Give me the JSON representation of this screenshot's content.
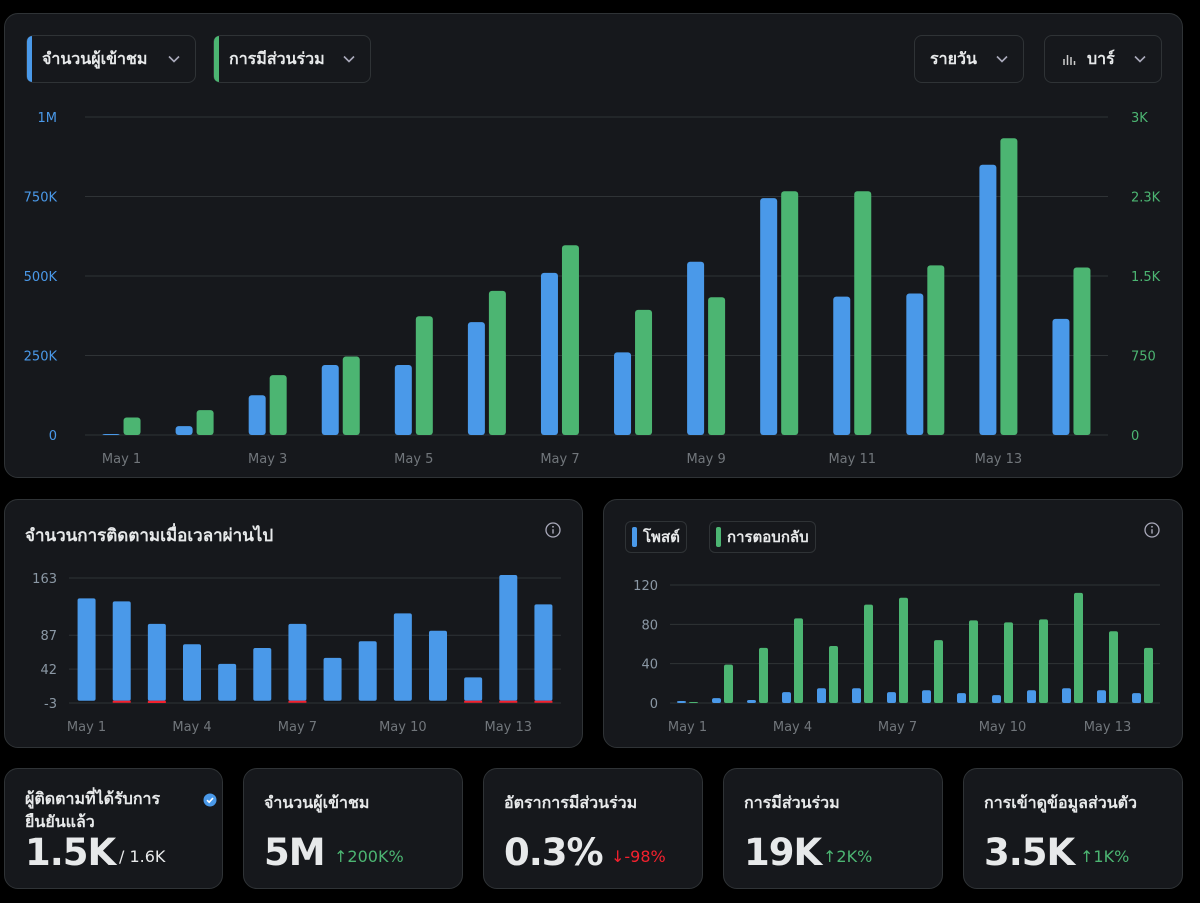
{
  "main_chart": {
    "selectors": {
      "metric_1": "จำนวนผู้เข้าชม",
      "metric_2": "การมีส่วนร่วม",
      "period": "รายวัน",
      "chart_type": "บาร์"
    },
    "colors": {
      "series_1": "#4a99e9",
      "series_2": "#4cb572"
    }
  },
  "followers_card": {
    "title": "จำนวนการติดตามเมื่อเวลาผ่านไป"
  },
  "replies_card": {
    "legend_1": "โพสต์",
    "legend_2": "การตอบกลับ"
  },
  "stats": [
    {
      "label": "ผู้ติดตามที่ได้รับการยืนยันแล้ว",
      "value": "1.5K",
      "sub": "/ 1.6K",
      "verified_icon": "verified-badge-icon"
    },
    {
      "label": "จำนวนผู้เข้าชม",
      "value": "5M",
      "delta": "↑200K%",
      "delta_color": "#4cb572"
    },
    {
      "label": "อัตราการมีส่วนร่วม",
      "value": "0.3%",
      "delta": "↓-98%",
      "delta_color": "#f4212e"
    },
    {
      "label": "การมีส่วนร่วม",
      "value": "19K",
      "delta": "↑2K%",
      "delta_color": "#4cb572"
    },
    {
      "label": "การเข้าดูข้อมูลส่วนตัว",
      "value": "3.5K",
      "delta": "↑1K%",
      "delta_color": "#4cb572"
    }
  ],
  "chart_data": [
    {
      "type": "bar",
      "categories": [
        "May 1",
        "May 2",
        "May 3",
        "May 4",
        "May 5",
        "May 6",
        "May 7",
        "May 8",
        "May 9",
        "May 10",
        "May 11",
        "May 12",
        "May 13",
        "May 14"
      ],
      "x_tick_labels": [
        "May 1",
        "May 3",
        "May 5",
        "May 7",
        "May 9",
        "May 11",
        "May 13"
      ],
      "series": [
        {
          "name": "จำนวนผู้เข้าชม",
          "axis": "left",
          "values": [
            2000,
            28000,
            125000,
            220000,
            220000,
            355000,
            510000,
            260000,
            545000,
            745000,
            435000,
            445000,
            850000,
            365000
          ]
        },
        {
          "name": "การมีส่วนร่วม",
          "axis": "right",
          "values": [
            165,
            235,
            565,
            740,
            1120,
            1360,
            1790,
            1180,
            1300,
            2300,
            2300,
            1600,
            2800,
            1580
          ]
        }
      ],
      "y_left": {
        "ticks": [
          "0",
          "250K",
          "500K",
          "750K",
          "1M"
        ],
        "lim": [
          0,
          1000000
        ]
      },
      "y_right": {
        "ticks": [
          "0",
          "750",
          "1.5K",
          "2.3K",
          "3K"
        ],
        "lim": [
          0,
          3000
        ]
      },
      "grid": true
    },
    {
      "type": "bar",
      "title": "จำนวนการติดตามเมื่อเวลาผ่านไป",
      "categories": [
        "May 1",
        "May 2",
        "May 3",
        "May 4",
        "May 5",
        "May 6",
        "May 7",
        "May 8",
        "May 9",
        "May 10",
        "May 11",
        "May 12",
        "May 13",
        "May 14"
      ],
      "x_tick_labels": [
        "May 1",
        "May 4",
        "May 7",
        "May 10",
        "May 13"
      ],
      "series": [
        {
          "values": [
            136,
            132,
            102,
            75,
            49,
            70,
            102,
            57,
            79,
            116,
            93,
            31,
            167,
            128
          ]
        },
        {
          "values": [
            0,
            -1,
            -3,
            0,
            0,
            0,
            -1,
            0,
            0,
            0,
            0,
            -2,
            -1,
            -2
          ]
        }
      ],
      "y_ticks": [
        "-3",
        "42",
        "87",
        "163"
      ],
      "ylim": [
        -3,
        163
      ],
      "grid": true
    },
    {
      "type": "bar",
      "categories": [
        "May 1",
        "May 2",
        "May 3",
        "May 4",
        "May 5",
        "May 6",
        "May 7",
        "May 8",
        "May 9",
        "May 10",
        "May 11",
        "May 12",
        "May 13",
        "May 14"
      ],
      "x_tick_labels": [
        "May 1",
        "May 4",
        "May 7",
        "May 10",
        "May 13"
      ],
      "series": [
        {
          "name": "โพสต์",
          "values": [
            2,
            5,
            3,
            11,
            15,
            15,
            11,
            13,
            10,
            8,
            13,
            15,
            13,
            10
          ]
        },
        {
          "name": "การตอบกลับ",
          "values": [
            1,
            39,
            56,
            86,
            58,
            100,
            107,
            64,
            84,
            82,
            85,
            112,
            73,
            56
          ]
        }
      ],
      "y_ticks": [
        "0",
        "40",
        "80",
        "120"
      ],
      "ylim": [
        0,
        130
      ],
      "grid": true
    }
  ]
}
